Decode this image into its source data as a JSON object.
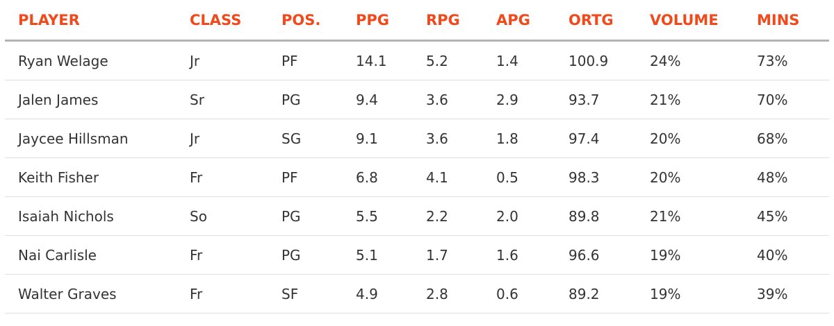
{
  "table": {
    "columns": [
      "PLAYER",
      "CLASS",
      "POS.",
      "PPG",
      "RPG",
      "APG",
      "ORTG",
      "VOLUME",
      "MINS"
    ],
    "rows": [
      [
        "Ryan Welage",
        "Jr",
        "PF",
        "14.1",
        "5.2",
        "1.4",
        "100.9",
        "24%",
        "73%"
      ],
      [
        "Jalen James",
        "Sr",
        "PG",
        "9.4",
        "3.6",
        "2.9",
        "93.7",
        "21%",
        "70%"
      ],
      [
        "Jaycee Hillsman",
        "Jr",
        "SG",
        "9.1",
        "3.6",
        "1.8",
        "97.4",
        "20%",
        "68%"
      ],
      [
        "Keith Fisher",
        "Fr",
        "PF",
        "6.8",
        "4.1",
        "0.5",
        "98.3",
        "20%",
        "48%"
      ],
      [
        "Isaiah Nichols",
        "So",
        "PG",
        "5.5",
        "2.2",
        "2.0",
        "89.8",
        "21%",
        "45%"
      ],
      [
        "Nai Carlisle",
        "Fr",
        "PG",
        "5.1",
        "1.7",
        "1.6",
        "96.6",
        "19%",
        "40%"
      ],
      [
        "Walter Graves",
        "Fr",
        "SF",
        "4.9",
        "2.8",
        "0.6",
        "89.2",
        "19%",
        "39%"
      ]
    ]
  },
  "colors": {
    "header_text": "#f04a1c",
    "body_text": "#333333",
    "header_rule": "#b3b3b3",
    "row_rule": "#dddddd"
  }
}
